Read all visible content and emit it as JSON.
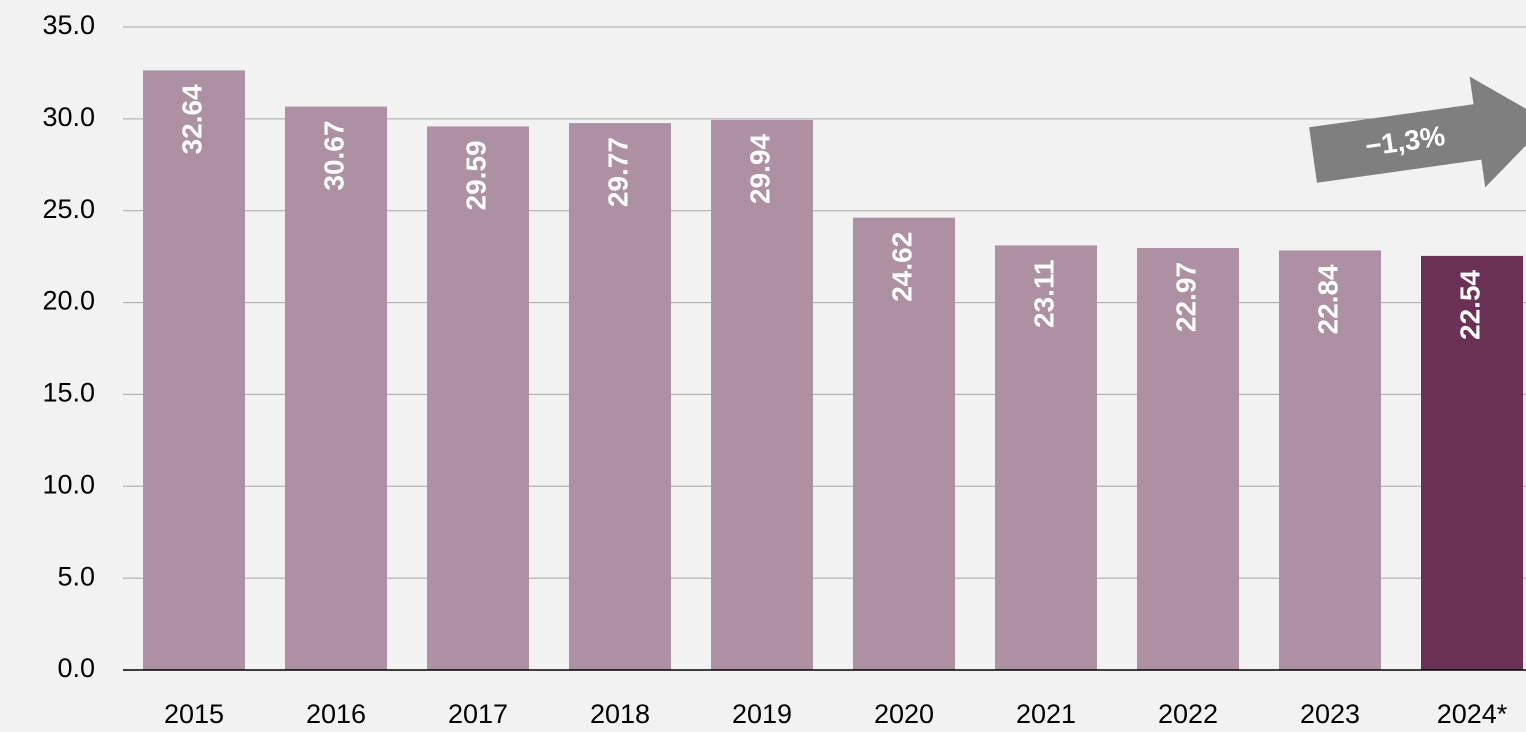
{
  "chart_data": {
    "type": "bar",
    "categories": [
      "2015",
      "2016",
      "2017",
      "2018",
      "2019",
      "2020",
      "2021",
      "2022",
      "2023",
      "2024*"
    ],
    "values": [
      32.64,
      30.67,
      29.59,
      29.77,
      29.94,
      24.62,
      23.11,
      22.97,
      22.84,
      22.54
    ],
    "colors": [
      "#ad91a3",
      "#ad91a3",
      "#ad91a3",
      "#ad91a3",
      "#ad91a3",
      "#ad91a3",
      "#ad91a3",
      "#ad91a3",
      "#ad91a3",
      "#6b3154"
    ],
    "ylim": [
      0,
      35
    ],
    "yticks": [
      {
        "value": 0,
        "label": "0.0"
      },
      {
        "value": 5,
        "label": "5.0"
      },
      {
        "value": 10,
        "label": "10.0"
      },
      {
        "value": 15,
        "label": "15.0"
      },
      {
        "value": 20,
        "label": "20.0"
      },
      {
        "value": 25,
        "label": "25.0"
      },
      {
        "value": 30,
        "label": "30.0"
      },
      {
        "value": 35,
        "label": "35.0"
      }
    ],
    "grid": true,
    "annotation": "−1,3%"
  }
}
